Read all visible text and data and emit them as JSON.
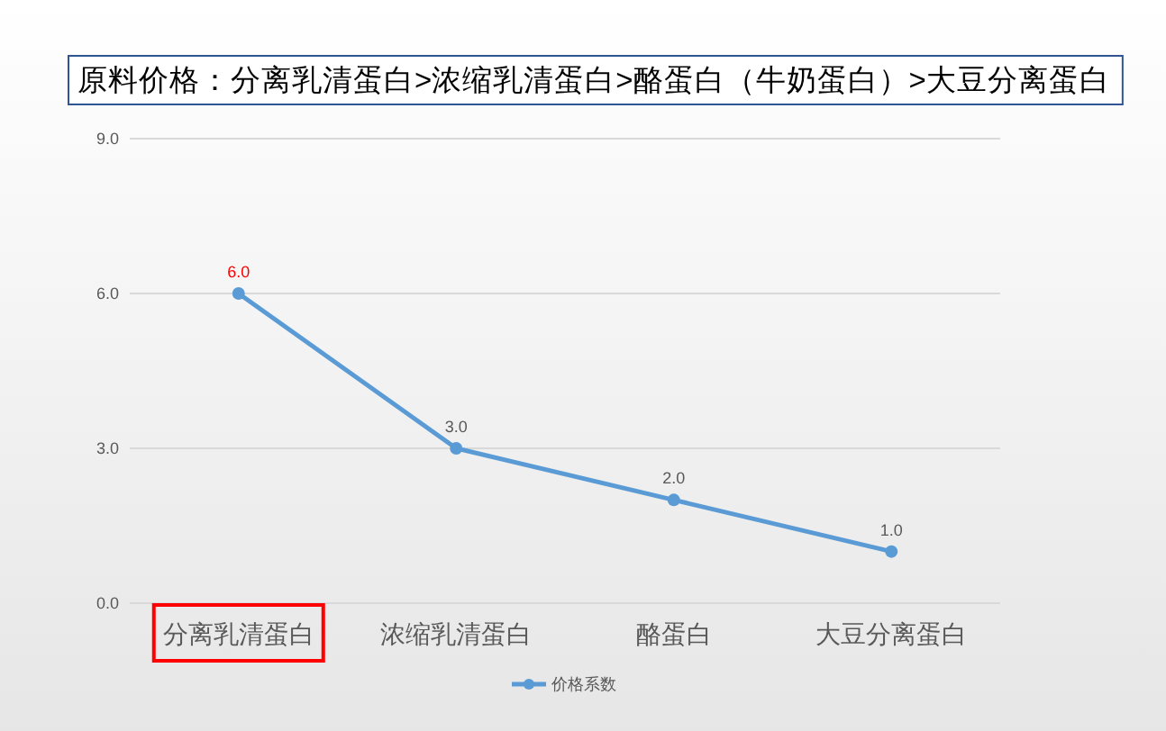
{
  "chart_data": {
    "type": "line",
    "title": "原料价格：分离乳清蛋白>浓缩乳清蛋白>酪蛋白（牛奶蛋白）>大豆分离蛋白",
    "categories": [
      "分离乳清蛋白",
      "浓缩乳清蛋白",
      "酪蛋白",
      "大豆分离蛋白"
    ],
    "series": [
      {
        "name": "价格系数",
        "color": "#5b9bd5",
        "values": [
          6,
          3,
          2,
          1
        ],
        "value_labels": [
          "6.0",
          "3.0",
          "2.0",
          "1.0"
        ]
      }
    ],
    "ylim": [
      0,
      9
    ],
    "yticks": [
      {
        "value": 0,
        "label": "0.0"
      },
      {
        "value": 3,
        "label": "3.0"
      },
      {
        "value": 6,
        "label": "6.0"
      },
      {
        "value": 9,
        "label": "9.0"
      }
    ],
    "grid": "y",
    "legend": "bottom",
    "marker": "circle",
    "line_style": "solid"
  }
}
